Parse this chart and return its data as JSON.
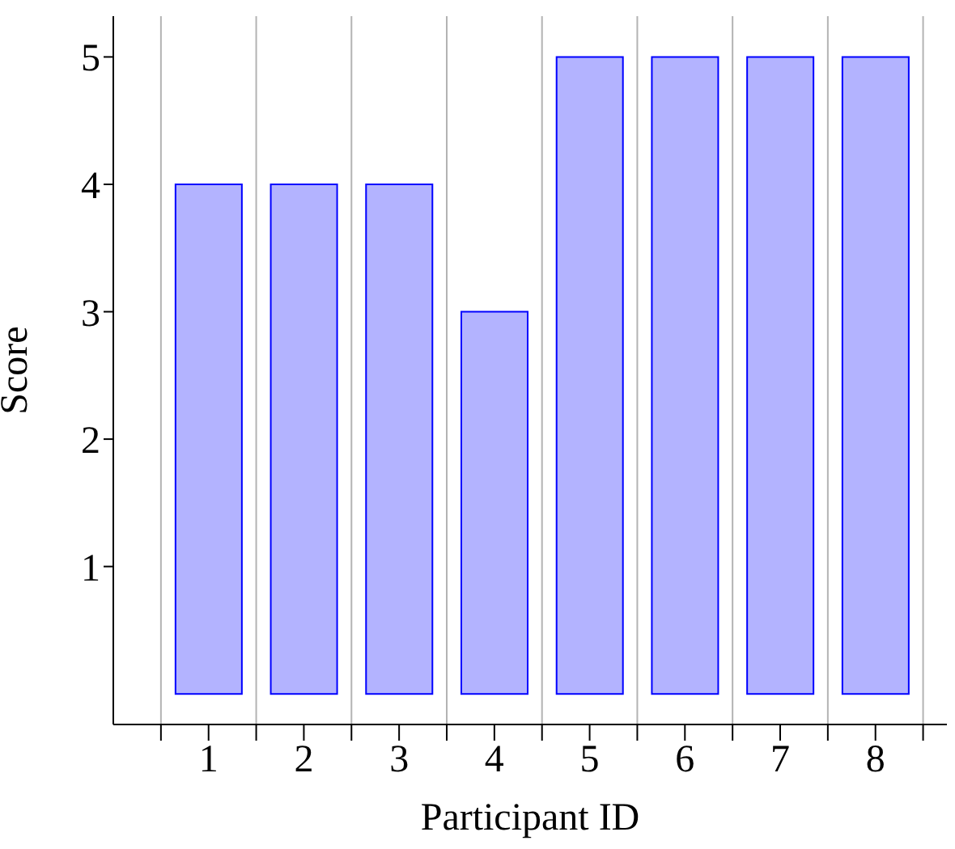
{
  "chart_data": {
    "type": "bar",
    "xlabel": "Participant ID",
    "ylabel": "Score",
    "x": [
      1,
      2,
      3,
      4,
      5,
      6,
      7,
      8
    ],
    "values": [
      4,
      4,
      4,
      3,
      5,
      5,
      5,
      5
    ],
    "color": "#b3b3ff",
    "xlim": [
      0,
      8.75
    ],
    "xticks": [
      {
        "value": 0.5,
        "label": null
      },
      1,
      {
        "value": 1.5,
        "label": null
      },
      2,
      {
        "value": 2.5,
        "label": null
      },
      3,
      {
        "value": 3.5,
        "label": null
      },
      4,
      {
        "value": 4.5,
        "label": null
      },
      5,
      {
        "value": 5.5,
        "label": null
      },
      6,
      {
        "value": 6.5,
        "label": null
      },
      7,
      {
        "value": 7.5,
        "label": null
      },
      8,
      {
        "value": 8.5,
        "label": null
      }
    ],
    "ylim": [
      -0.24,
      5.32
    ],
    "yticks": [
      1,
      2,
      3,
      4,
      5
    ],
    "grid": "x"
  }
}
